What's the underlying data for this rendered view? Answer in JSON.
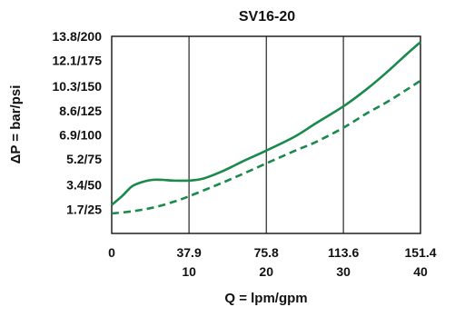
{
  "chart_data": {
    "type": "line",
    "title": "SV16-20",
    "xlabel": "Q = lpm/gpm",
    "ylabel": "ΔP = bar/psi",
    "xlim": [
      0,
      151.4
    ],
    "ylim": [
      0,
      13.8
    ],
    "x_ticks": [
      {
        "value": 0,
        "lpm": "0",
        "gpm": ""
      },
      {
        "value": 37.9,
        "lpm": "37.9",
        "gpm": "10"
      },
      {
        "value": 75.8,
        "lpm": "75.8",
        "gpm": "20"
      },
      {
        "value": 113.6,
        "lpm": "113.6",
        "gpm": "30"
      },
      {
        "value": 151.4,
        "lpm": "151.4",
        "gpm": "40"
      }
    ],
    "y_ticks": [
      {
        "value": 1.7,
        "label": "1.7/25"
      },
      {
        "value": 3.4,
        "label": "3.4/50"
      },
      {
        "value": 5.2,
        "label": "5.2/75"
      },
      {
        "value": 6.9,
        "label": "6.9/100"
      },
      {
        "value": 8.6,
        "label": "8.6/125"
      },
      {
        "value": 10.3,
        "label": "10.3/150"
      },
      {
        "value": 12.1,
        "label": "12.1/175"
      },
      {
        "value": 13.8,
        "label": "13.8/200"
      }
    ],
    "grid": {
      "vertical": true,
      "horizontal": false
    },
    "series": [
      {
        "style": "solid",
        "color": "#1a8a4c",
        "points": [
          [
            0,
            2.0
          ],
          [
            5,
            2.6
          ],
          [
            10,
            3.3
          ],
          [
            15,
            3.6
          ],
          [
            20,
            3.75
          ],
          [
            25,
            3.75
          ],
          [
            30,
            3.7
          ],
          [
            37.9,
            3.7
          ],
          [
            45,
            3.85
          ],
          [
            55,
            4.4
          ],
          [
            65,
            5.1
          ],
          [
            75.8,
            5.8
          ],
          [
            90,
            6.8
          ],
          [
            100,
            7.7
          ],
          [
            113.6,
            8.9
          ],
          [
            125,
            10.1
          ],
          [
            135,
            11.3
          ],
          [
            145,
            12.6
          ],
          [
            151.4,
            13.4
          ]
        ]
      },
      {
        "style": "dashed",
        "color": "#1a8a4c",
        "points": [
          [
            0,
            1.4
          ],
          [
            10,
            1.55
          ],
          [
            20,
            1.8
          ],
          [
            30,
            2.2
          ],
          [
            37.9,
            2.6
          ],
          [
            50,
            3.3
          ],
          [
            60,
            3.9
          ],
          [
            75.8,
            4.9
          ],
          [
            90,
            5.8
          ],
          [
            100,
            6.4
          ],
          [
            113.6,
            7.4
          ],
          [
            125,
            8.4
          ],
          [
            135,
            9.2
          ],
          [
            145,
            10.1
          ],
          [
            151.4,
            10.7
          ]
        ]
      }
    ]
  }
}
